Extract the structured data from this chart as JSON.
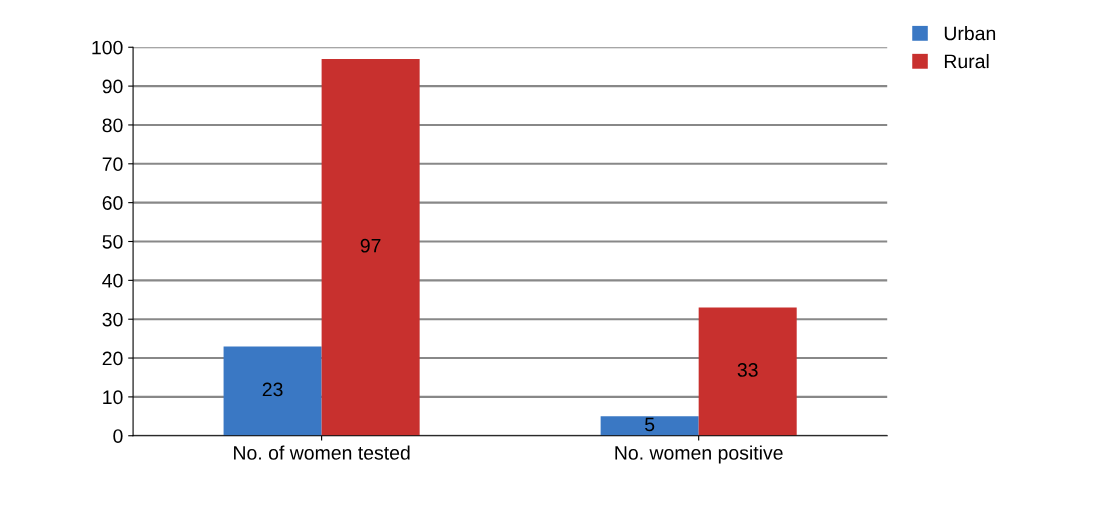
{
  "chart_data": {
    "type": "bar",
    "categories": [
      "No. of women tested",
      "No. women positive"
    ],
    "series": [
      {
        "name": "Urban",
        "color": "#3a78c4",
        "values": [
          23,
          5
        ]
      },
      {
        "name": "Rural",
        "color": "#c8302e",
        "values": [
          97,
          33
        ]
      }
    ],
    "ylim": [
      0,
      100
    ],
    "yticks": [
      0,
      10,
      20,
      30,
      40,
      50,
      60,
      70,
      80,
      90,
      100
    ],
    "grid": "y",
    "legend": "top right",
    "data_labels": true
  }
}
